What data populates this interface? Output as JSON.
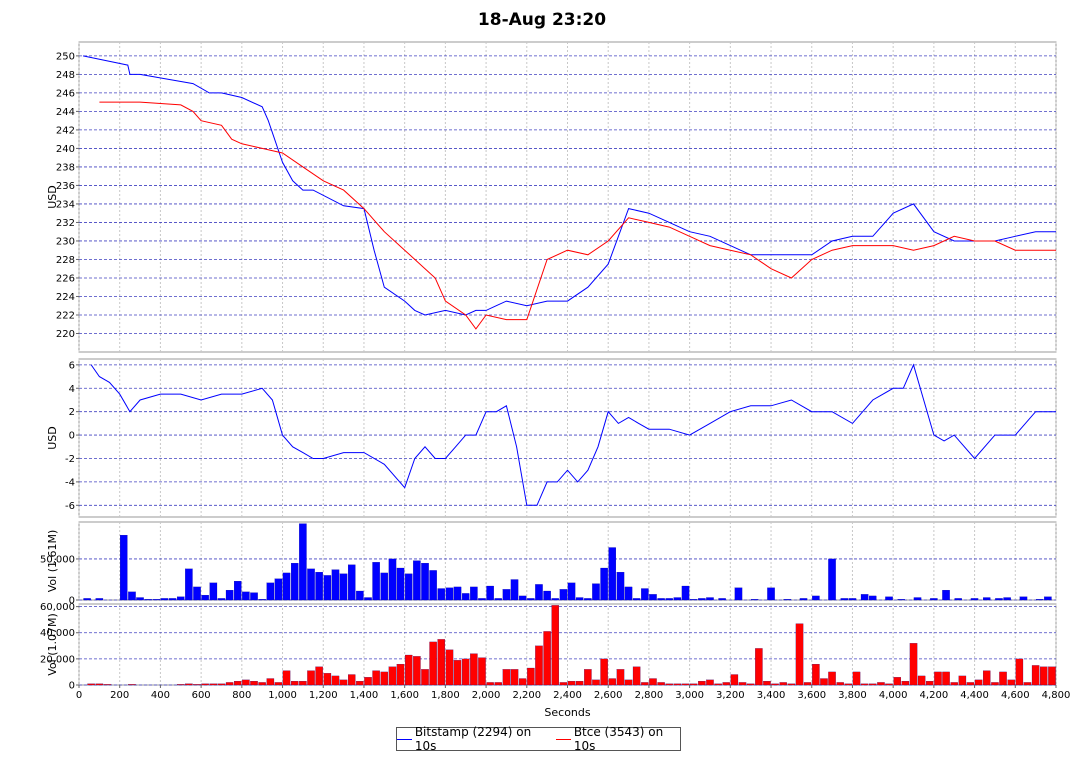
{
  "title": "18-Aug 23:20",
  "chart_data": [
    {
      "id": "price",
      "type": "line",
      "ylabel": "USD",
      "ylim": [
        218,
        251.5
      ],
      "yticks": [
        220,
        222,
        224,
        226,
        228,
        230,
        232,
        234,
        236,
        238,
        240,
        242,
        244,
        246,
        248,
        250
      ],
      "xlim": [
        0,
        4800
      ],
      "grid": true,
      "series": [
        {
          "name": "Bitstamp (2294) on 10s",
          "color": "#0000ff",
          "x": [
            20,
            240,
            250,
            270,
            300,
            560,
            640,
            700,
            800,
            900,
            930,
            1000,
            1050,
            1100,
            1150,
            1300,
            1400,
            1450,
            1500,
            1600,
            1650,
            1700,
            1800,
            1900,
            1950,
            2000,
            2050,
            2100,
            2200,
            2300,
            2400,
            2500,
            2600,
            2700,
            2800,
            2900,
            3000,
            3100,
            3200,
            3300,
            3400,
            3500,
            3600,
            3700,
            3800,
            3900,
            4000,
            4100,
            4200,
            4300,
            4400,
            4500,
            4600,
            4700,
            4800
          ],
          "y": [
            250,
            249,
            248,
            248,
            248,
            247,
            246,
            246,
            245.5,
            244.5,
            243,
            238.5,
            236.5,
            235.5,
            235.5,
            233.8,
            233.5,
            229,
            225,
            223.5,
            222.5,
            222,
            222.5,
            222,
            222.5,
            222.5,
            223,
            223.5,
            223,
            223.5,
            223.5,
            225,
            227.5,
            233.5,
            233,
            232,
            231,
            230.5,
            229.5,
            228.5,
            228.5,
            228.5,
            228.5,
            230,
            230.5,
            230.5,
            233,
            234,
            231,
            230,
            230,
            230,
            230.5,
            231,
            231
          ]
        },
        {
          "name": "Btce (3543) on 10s",
          "color": "#ff0000",
          "x": [
            100,
            200,
            300,
            500,
            560,
            600,
            700,
            750,
            800,
            900,
            1000,
            1100,
            1200,
            1300,
            1400,
            1500,
            1600,
            1700,
            1750,
            1800,
            1900,
            1950,
            2000,
            2100,
            2200,
            2300,
            2400,
            2500,
            2600,
            2700,
            2800,
            2900,
            3000,
            3100,
            3200,
            3300,
            3400,
            3500,
            3600,
            3700,
            3800,
            3900,
            4000,
            4100,
            4200,
            4300,
            4400,
            4500,
            4600,
            4700,
            4800
          ],
          "y": [
            245,
            245,
            245,
            244.7,
            244,
            243,
            242.5,
            241,
            240.5,
            240,
            239.5,
            238,
            236.5,
            235.5,
            233.5,
            231,
            229,
            227,
            226,
            223.5,
            222,
            220.5,
            222,
            221.5,
            221.5,
            228,
            229,
            228.5,
            230,
            232.5,
            232,
            231.5,
            230.5,
            229.5,
            229,
            228.5,
            227,
            226,
            228,
            229,
            229.5,
            229.5,
            229.5,
            229,
            229.5,
            230.5,
            230,
            230,
            229,
            229,
            229
          ]
        }
      ]
    },
    {
      "id": "diff",
      "type": "line",
      "ylabel": "USD",
      "ylim": [
        -7,
        6.5
      ],
      "yticks": [
        -6,
        -4,
        -2,
        0,
        2,
        4,
        6
      ],
      "xlim": [
        0,
        4800
      ],
      "grid": true,
      "series": [
        {
          "name": "",
          "color": "#0000ff",
          "x": [
            60,
            100,
            150,
            200,
            250,
            300,
            400,
            500,
            600,
            700,
            800,
            900,
            950,
            1000,
            1050,
            1100,
            1150,
            1200,
            1300,
            1400,
            1500,
            1600,
            1650,
            1700,
            1750,
            1800,
            1850,
            1900,
            1950,
            2000,
            2050,
            2100,
            2150,
            2200,
            2250,
            2300,
            2350,
            2400,
            2450,
            2500,
            2550,
            2600,
            2650,
            2700,
            2750,
            2800,
            2900,
            3000,
            3100,
            3200,
            3300,
            3400,
            3500,
            3600,
            3700,
            3800,
            3900,
            4000,
            4050,
            4100,
            4150,
            4200,
            4250,
            4300,
            4400,
            4500,
            4600,
            4700,
            4800
          ],
          "y": [
            6,
            5,
            4.5,
            3.5,
            2,
            3,
            3.5,
            3.5,
            3,
            3.5,
            3.5,
            4,
            3,
            0,
            -1,
            -1.5,
            -2,
            -2,
            -1.5,
            -1.5,
            -2.5,
            -4.5,
            -2,
            -1,
            -2,
            -2,
            -1,
            0,
            0,
            2,
            2,
            2.5,
            -1,
            -6,
            -6,
            -4,
            -4,
            -3,
            -4,
            -3,
            -1,
            2,
            1,
            1.5,
            1,
            0.5,
            0.5,
            0,
            1,
            2,
            2.5,
            2.5,
            3,
            2,
            2,
            1,
            3,
            4,
            4,
            6,
            3,
            0,
            -0.5,
            0,
            -2,
            0,
            0,
            2,
            2
          ]
        }
      ]
    },
    {
      "id": "vol-bitstamp",
      "type": "bar",
      "ylabel": "Vol (1.61M)",
      "ylim": [
        0,
        95000
      ],
      "yticks": [
        0,
        50000
      ],
      "ytick_labels": [
        "0",
        "50,000"
      ],
      "xlim": [
        0,
        4800
      ],
      "color": "#0000ff",
      "x": [
        40,
        100,
        220,
        260,
        300,
        340,
        380,
        420,
        460,
        500,
        540,
        580,
        620,
        660,
        700,
        740,
        780,
        820,
        860,
        900,
        940,
        980,
        1020,
        1060,
        1100,
        1140,
        1180,
        1220,
        1260,
        1300,
        1340,
        1380,
        1420,
        1460,
        1500,
        1540,
        1580,
        1620,
        1660,
        1700,
        1740,
        1780,
        1820,
        1860,
        1900,
        1940,
        1980,
        2020,
        2060,
        2100,
        2140,
        2180,
        2220,
        2260,
        2300,
        2340,
        2380,
        2420,
        2460,
        2500,
        2540,
        2580,
        2620,
        2660,
        2700,
        2740,
        2780,
        2820,
        2860,
        2900,
        2940,
        2980,
        3020,
        3060,
        3100,
        3160,
        3240,
        3320,
        3400,
        3480,
        3560,
        3620,
        3700,
        3760,
        3800,
        3860,
        3900,
        3980,
        4040,
        4120,
        4200,
        4260,
        4320,
        4400,
        4460,
        4520,
        4560,
        4640,
        4720,
        4760
      ],
      "values": [
        2000,
        2000,
        79000,
        10000,
        3000,
        1000,
        1000,
        2000,
        2000,
        4000,
        38000,
        16000,
        6000,
        21000,
        2000,
        12000,
        23000,
        10000,
        9000,
        1000,
        21000,
        26000,
        33000,
        45000,
        93000,
        38000,
        34000,
        30000,
        37000,
        32000,
        43000,
        11000,
        3000,
        46000,
        33000,
        50000,
        39000,
        32000,
        48000,
        45000,
        36000,
        14000,
        15000,
        16000,
        8000,
        16000,
        2000,
        17000,
        2000,
        13000,
        25000,
        5000,
        2000,
        19000,
        11000,
        2000,
        13000,
        21000,
        3000,
        2000,
        20000,
        39000,
        64000,
        34000,
        16000,
        2000,
        14000,
        7000,
        2000,
        2000,
        3000,
        17000,
        1000,
        2000,
        3000,
        2000,
        15000,
        1000,
        15000,
        1000,
        2000,
        5000,
        50000,
        2000,
        2000,
        7000,
        5000,
        4000,
        1000,
        3000,
        2000,
        12000,
        2000,
        2000,
        3000,
        2000,
        3000,
        4000,
        1000,
        4000
      ]
    },
    {
      "id": "vol-btce",
      "type": "bar",
      "ylabel": "Vol (1.07M)",
      "ylim": [
        0,
        62000
      ],
      "yticks": [
        0,
        20000,
        40000,
        60000
      ],
      "ytick_labels": [
        "0",
        "20,000",
        "40,000",
        "60,000"
      ],
      "xlim": [
        0,
        4800
      ],
      "xlabel": "Seconds",
      "xticks": [
        0,
        200,
        400,
        600,
        800,
        1000,
        1200,
        1400,
        1600,
        1800,
        2000,
        2200,
        2400,
        2600,
        2800,
        3000,
        3200,
        3400,
        3600,
        3800,
        4000,
        4200,
        4400,
        4600,
        4800
      ],
      "xtick_labels": [
        "0",
        "200",
        "400",
        "600",
        "800",
        "1,000",
        "1,200",
        "1,400",
        "1,600",
        "1,800",
        "2,000",
        "2,200",
        "2,400",
        "2,600",
        "2,800",
        "3,000",
        "3,200",
        "3,400",
        "3,600",
        "3,800",
        "4,000",
        "4,200",
        "4,400",
        "4,600",
        "4,800"
      ],
      "color": "#ff0000",
      "x": [
        60,
        100,
        140,
        260,
        500,
        540,
        580,
        620,
        660,
        700,
        740,
        780,
        820,
        860,
        900,
        940,
        980,
        1020,
        1060,
        1100,
        1140,
        1180,
        1220,
        1260,
        1300,
        1340,
        1380,
        1420,
        1460,
        1500,
        1540,
        1580,
        1620,
        1660,
        1700,
        1740,
        1780,
        1820,
        1860,
        1900,
        1940,
        1980,
        2020,
        2060,
        2100,
        2140,
        2180,
        2220,
        2260,
        2300,
        2340,
        2380,
        2420,
        2460,
        2500,
        2540,
        2580,
        2620,
        2660,
        2700,
        2740,
        2780,
        2820,
        2860,
        2900,
        2940,
        2980,
        3020,
        3060,
        3100,
        3140,
        3180,
        3220,
        3260,
        3300,
        3340,
        3380,
        3420,
        3460,
        3500,
        3540,
        3580,
        3620,
        3660,
        3700,
        3740,
        3780,
        3820,
        3860,
        3900,
        3940,
        3980,
        4020,
        4060,
        4100,
        4140,
        4180,
        4220,
        4260,
        4300,
        4340,
        4380,
        4420,
        4460,
        4500,
        4540,
        4580,
        4620,
        4660,
        4700,
        4740,
        4780
      ],
      "values": [
        1000,
        1000,
        500,
        500,
        500,
        1000,
        500,
        1000,
        1000,
        1000,
        2000,
        3000,
        4000,
        3000,
        2000,
        5000,
        2000,
        11000,
        3000,
        3000,
        11000,
        14000,
        9000,
        7000,
        4000,
        8000,
        3000,
        6000,
        11000,
        10000,
        14000,
        16000,
        23000,
        22000,
        12000,
        33000,
        35000,
        27000,
        19000,
        20000,
        24000,
        21000,
        2000,
        2000,
        12000,
        12000,
        5000,
        13000,
        30000,
        41000,
        61000,
        2000,
        3000,
        3000,
        12000,
        4000,
        20000,
        5000,
        12000,
        4000,
        14000,
        2000,
        5000,
        2000,
        1000,
        1000,
        1000,
        1000,
        3000,
        4000,
        1000,
        2000,
        8000,
        2000,
        1000,
        28000,
        3000,
        1000,
        2000,
        1000,
        47000,
        2000,
        16000,
        5000,
        10000,
        2000,
        1000,
        10000,
        1000,
        1000,
        2000,
        1000,
        6000,
        3000,
        32000,
        7000,
        3000,
        10000,
        10000,
        2000,
        7000,
        2000,
        4000,
        11000,
        2000,
        10000,
        4000,
        20000,
        2000,
        15000,
        14000,
        14000
      ]
    }
  ]
}
